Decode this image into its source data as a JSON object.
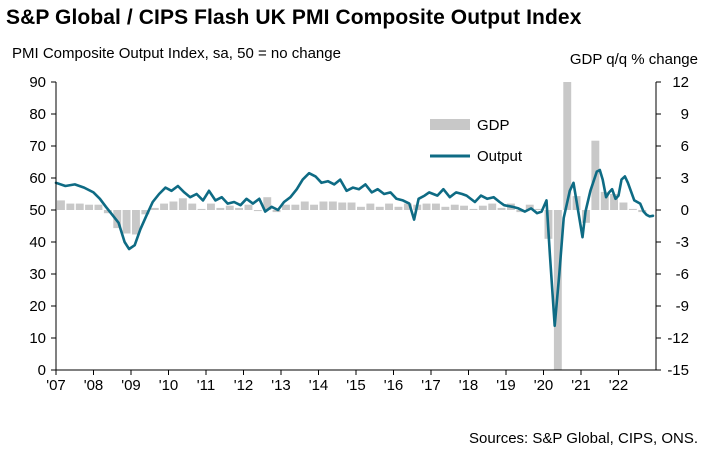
{
  "chart_data": {
    "type": "bar+line",
    "title": "S&P Global / CIPS Flash UK PMI Composite Output Index",
    "ylabel_left": "PMI Composite  Output Index, sa, 50 = no change",
    "ylabel_right": "GDP q/q % change",
    "ylim_left": [
      0,
      90
    ],
    "yticks_left": [
      "0",
      "10",
      "20",
      "30",
      "40",
      "50",
      "60",
      "70",
      "80",
      "90"
    ],
    "ylim_right": [
      -15,
      12
    ],
    "yticks_right": [
      "-15",
      "-12",
      "-9",
      "-6",
      "-3",
      "0",
      "3",
      "6",
      "9",
      "12"
    ],
    "x_range": [
      2007.0,
      2023.0
    ],
    "xticks": [
      "'07",
      "'08",
      "'09",
      "'10",
      "'11",
      "'12",
      "'13",
      "'14",
      "'15",
      "'16",
      "'17",
      "'18",
      "'19",
      "'20",
      "'21",
      "'22"
    ],
    "legend": [
      "GDP",
      "Output"
    ],
    "legend_position": "upper-center",
    "source": "Sources: S&P Global, CIPS, ONS.",
    "colors": {
      "gdp": "#c8c8c8",
      "output": "#0e6b84",
      "axis": "#000000"
    },
    "gdp_quarters": [
      [
        "2007Q1",
        0.9
      ],
      [
        "2007Q2",
        0.6
      ],
      [
        "2007Q3",
        0.6
      ],
      [
        "2007Q4",
        0.5
      ],
      [
        "2008Q1",
        0.5
      ],
      [
        "2008Q2",
        -0.3
      ],
      [
        "2008Q3",
        -1.7
      ],
      [
        "2008Q4",
        -2.2
      ],
      [
        "2009Q1",
        -2.3
      ],
      [
        "2009Q2",
        -0.4
      ],
      [
        "2009Q3",
        0.2
      ],
      [
        "2009Q4",
        0.6
      ],
      [
        "2010Q1",
        0.8
      ],
      [
        "2010Q2",
        1.1
      ],
      [
        "2010Q3",
        0.6
      ],
      [
        "2010Q4",
        0.1
      ],
      [
        "2011Q1",
        0.6
      ],
      [
        "2011Q2",
        0.2
      ],
      [
        "2011Q3",
        0.4
      ],
      [
        "2011Q4",
        0.2
      ],
      [
        "2012Q1",
        0.5
      ],
      [
        "2012Q2",
        -0.1
      ],
      [
        "2012Q3",
        1.2
      ],
      [
        "2012Q4",
        -0.2
      ],
      [
        "2013Q1",
        0.5
      ],
      [
        "2013Q2",
        0.5
      ],
      [
        "2013Q3",
        0.8
      ],
      [
        "2013Q4",
        0.5
      ],
      [
        "2014Q1",
        0.8
      ],
      [
        "2014Q2",
        0.8
      ],
      [
        "2014Q3",
        0.7
      ],
      [
        "2014Q4",
        0.7
      ],
      [
        "2015Q1",
        0.3
      ],
      [
        "2015Q2",
        0.6
      ],
      [
        "2015Q3",
        0.3
      ],
      [
        "2015Q4",
        0.6
      ],
      [
        "2016Q1",
        0.3
      ],
      [
        "2016Q2",
        0.6
      ],
      [
        "2016Q3",
        0.5
      ],
      [
        "2016Q4",
        0.6
      ],
      [
        "2017Q1",
        0.6
      ],
      [
        "2017Q2",
        0.3
      ],
      [
        "2017Q3",
        0.5
      ],
      [
        "2017Q4",
        0.4
      ],
      [
        "2018Q1",
        0.1
      ],
      [
        "2018Q2",
        0.4
      ],
      [
        "2018Q3",
        0.6
      ],
      [
        "2018Q4",
        0.2
      ],
      [
        "2019Q1",
        0.6
      ],
      [
        "2019Q2",
        -0.2
      ],
      [
        "2019Q3",
        0.5
      ],
      [
        "2019Q4",
        0.1
      ],
      [
        "2020Q1",
        -2.7
      ],
      [
        "2020Q2",
        -18.0
      ],
      [
        "2020Q3",
        14.0
      ],
      [
        "2020Q4",
        1.3
      ],
      [
        "2021Q1",
        -1.2
      ],
      [
        "2021Q2",
        6.5
      ],
      [
        "2021Q3",
        1.7
      ],
      [
        "2021Q4",
        1.5
      ],
      [
        "2022Q1",
        0.7
      ],
      [
        "2022Q2",
        0.1
      ],
      [
        "2022Q3",
        -0.2
      ]
    ],
    "output_points": [
      [
        2007.0,
        58.5
      ],
      [
        2007.25,
        57.5
      ],
      [
        2007.5,
        58.0
      ],
      [
        2007.75,
        57.0
      ],
      [
        2008.0,
        55.5
      ],
      [
        2008.17,
        53.5
      ],
      [
        2008.33,
        51.0
      ],
      [
        2008.5,
        48.5
      ],
      [
        2008.67,
        46.0
      ],
      [
        2008.83,
        40.0
      ],
      [
        2008.95,
        37.8
      ],
      [
        2009.1,
        39.0
      ],
      [
        2009.25,
        44.0
      ],
      [
        2009.42,
        48.5
      ],
      [
        2009.58,
        52.5
      ],
      [
        2009.75,
        55.0
      ],
      [
        2009.92,
        57.0
      ],
      [
        2010.08,
        56.0
      ],
      [
        2010.25,
        57.5
      ],
      [
        2010.42,
        55.5
      ],
      [
        2010.58,
        54.0
      ],
      [
        2010.75,
        55.0
      ],
      [
        2010.92,
        53.0
      ],
      [
        2011.08,
        56.0
      ],
      [
        2011.25,
        53.0
      ],
      [
        2011.42,
        54.0
      ],
      [
        2011.58,
        52.0
      ],
      [
        2011.75,
        52.5
      ],
      [
        2011.92,
        51.5
      ],
      [
        2012.08,
        53.5
      ],
      [
        2012.25,
        52.0
      ],
      [
        2012.42,
        53.5
      ],
      [
        2012.58,
        49.5
      ],
      [
        2012.75,
        51.0
      ],
      [
        2012.92,
        50.0
      ],
      [
        2013.08,
        52.5
      ],
      [
        2013.25,
        54.0
      ],
      [
        2013.42,
        56.5
      ],
      [
        2013.58,
        59.5
      ],
      [
        2013.75,
        61.5
      ],
      [
        2013.92,
        60.5
      ],
      [
        2014.08,
        58.5
      ],
      [
        2014.25,
        59.0
      ],
      [
        2014.42,
        58.0
      ],
      [
        2014.58,
        59.5
      ],
      [
        2014.75,
        56.0
      ],
      [
        2014.92,
        57.0
      ],
      [
        2015.08,
        56.5
      ],
      [
        2015.25,
        58.0
      ],
      [
        2015.42,
        55.5
      ],
      [
        2015.58,
        56.5
      ],
      [
        2015.75,
        55.0
      ],
      [
        2015.92,
        55.5
      ],
      [
        2016.08,
        53.5
      ],
      [
        2016.25,
        53.0
      ],
      [
        2016.42,
        52.0
      ],
      [
        2016.55,
        47.0
      ],
      [
        2016.67,
        53.5
      ],
      [
        2016.83,
        54.5
      ],
      [
        2016.95,
        55.5
      ],
      [
        2017.17,
        54.5
      ],
      [
        2017.33,
        56.5
      ],
      [
        2017.5,
        54.0
      ],
      [
        2017.67,
        55.5
      ],
      [
        2017.83,
        55.0
      ],
      [
        2017.95,
        54.5
      ],
      [
        2018.17,
        52.5
      ],
      [
        2018.33,
        54.5
      ],
      [
        2018.5,
        53.5
      ],
      [
        2018.67,
        54.0
      ],
      [
        2018.83,
        52.5
      ],
      [
        2018.95,
        51.5
      ],
      [
        2019.17,
        51.0
      ],
      [
        2019.33,
        50.5
      ],
      [
        2019.5,
        49.5
      ],
      [
        2019.67,
        50.5
      ],
      [
        2019.83,
        49.0
      ],
      [
        2019.95,
        49.5
      ],
      [
        2020.08,
        53.0
      ],
      [
        2020.17,
        36.0
      ],
      [
        2020.3,
        13.8
      ],
      [
        2020.42,
        30.0
      ],
      [
        2020.54,
        47.5
      ],
      [
        2020.7,
        56.0
      ],
      [
        2020.8,
        58.5
      ],
      [
        2020.92,
        50.0
      ],
      [
        2021.04,
        41.5
      ],
      [
        2021.12,
        49.5
      ],
      [
        2021.25,
        56.0
      ],
      [
        2021.42,
        62.0
      ],
      [
        2021.5,
        62.5
      ],
      [
        2021.58,
        59.5
      ],
      [
        2021.67,
        54.0
      ],
      [
        2021.75,
        55.5
      ],
      [
        2021.83,
        56.5
      ],
      [
        2021.92,
        53.5
      ],
      [
        2022.0,
        54.5
      ],
      [
        2022.08,
        59.5
      ],
      [
        2022.17,
        60.5
      ],
      [
        2022.25,
        58.5
      ],
      [
        2022.42,
        53.0
      ],
      [
        2022.58,
        52.0
      ],
      [
        2022.67,
        49.5
      ],
      [
        2022.75,
        48.5
      ],
      [
        2022.83,
        48.0
      ],
      [
        2022.92,
        48.2
      ]
    ]
  }
}
